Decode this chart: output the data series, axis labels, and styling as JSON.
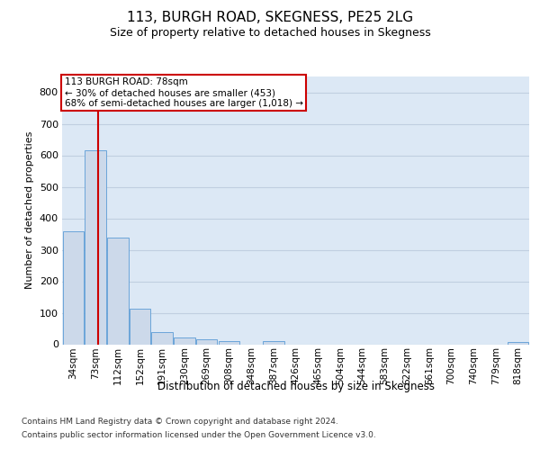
{
  "title": "113, BURGH ROAD, SKEGNESS, PE25 2LG",
  "subtitle": "Size of property relative to detached houses in Skegness",
  "xlabel": "Distribution of detached houses by size in Skegness",
  "ylabel": "Number of detached properties",
  "categories": [
    "34sqm",
    "73sqm",
    "112sqm",
    "152sqm",
    "191sqm",
    "230sqm",
    "269sqm",
    "308sqm",
    "348sqm",
    "387sqm",
    "426sqm",
    "465sqm",
    "504sqm",
    "544sqm",
    "583sqm",
    "622sqm",
    "661sqm",
    "700sqm",
    "740sqm",
    "779sqm",
    "818sqm"
  ],
  "values": [
    358,
    615,
    338,
    112,
    40,
    22,
    15,
    9,
    0,
    9,
    0,
    0,
    0,
    0,
    0,
    0,
    0,
    0,
    0,
    0,
    8
  ],
  "bar_color": "#ccd9ea",
  "bar_edge_color": "#5b9bd5",
  "grid_color": "#c0cfe0",
  "annotation_line1": "113 BURGH ROAD: 78sqm",
  "annotation_line2": "← 30% of detached houses are smaller (453)",
  "annotation_line3": "68% of semi-detached houses are larger (1,018) →",
  "vline_color": "#cc0000",
  "ylim": [
    0,
    850
  ],
  "yticks": [
    0,
    100,
    200,
    300,
    400,
    500,
    600,
    700,
    800
  ],
  "footer_line1": "Contains HM Land Registry data © Crown copyright and database right 2024.",
  "footer_line2": "Contains public sector information licensed under the Open Government Licence v3.0.",
  "bg_color": "#dce8f5",
  "fig_bg_color": "#ffffff"
}
